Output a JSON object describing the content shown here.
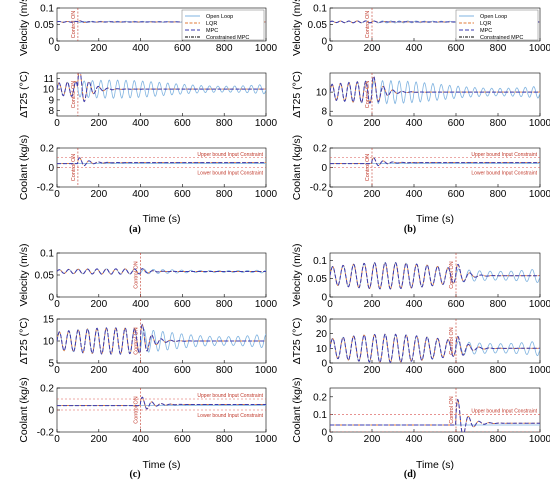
{
  "chart_data": [
    {
      "panel": "(a)",
      "type": "line",
      "xlabel": "Time (s)",
      "xlim": [
        0,
        1000
      ],
      "xticks": [
        0,
        200,
        400,
        600,
        800,
        1000
      ],
      "control_on_time": 100,
      "legend": {
        "placement": "top-right",
        "entries": [
          "Open Loop",
          "LQR",
          "MPC",
          "Constrained MPC"
        ]
      },
      "subplots": [
        {
          "ylabel": "Velocity (m/s)",
          "ylim": [
            0,
            0.1
          ],
          "yticks": [
            0,
            0.05,
            0.1
          ],
          "pre_control": {
            "mean": 0.058,
            "amp": 0.0015,
            "period": 40
          },
          "post_control": {
            "final": 0.058,
            "amp": 0.004,
            "tau": 40,
            "period": 50
          }
        },
        {
          "ylabel": "ΔT25 (°C)",
          "ylim": [
            7.5,
            11.5
          ],
          "yticks": [
            8,
            9,
            10,
            11
          ],
          "pre_control": {
            "mean": 10,
            "amp": 0.7,
            "period": 40
          },
          "post_control": {
            "final": 10,
            "amp": 2.3,
            "tau": 45,
            "period": 45
          }
        },
        {
          "ylabel": "Coolant (kg/s)",
          "ylim": [
            -0.2,
            0.2
          ],
          "yticks": [
            -0.2,
            0,
            0.2
          ],
          "upper_bound": 0.1,
          "lower_bound": 0,
          "pre_control": {
            "mean": 0.04,
            "amp": 0,
            "period": 40
          },
          "post_control": {
            "final": 0.05,
            "amp": 0.06,
            "tau": 45,
            "period": 45
          }
        }
      ]
    },
    {
      "panel": "(b)",
      "type": "line",
      "xlabel": "Time (s)",
      "xlim": [
        0,
        1000
      ],
      "xticks": [
        0,
        200,
        400,
        600,
        800,
        1000
      ],
      "control_on_time": 200,
      "legend": {
        "placement": "top-right",
        "entries": [
          "Open Loop",
          "LQR",
          "MPC",
          "Constrained MPC"
        ]
      },
      "subplots": [
        {
          "ylabel": "Velocity (m/s)",
          "ylim": [
            0,
            0.1
          ],
          "yticks": [
            0,
            0.05,
            0.1
          ],
          "pre_control": {
            "mean": 0.058,
            "amp": 0.0025,
            "period": 40
          },
          "post_control": {
            "final": 0.058,
            "amp": 0.003,
            "tau": 40,
            "period": 50
          }
        },
        {
          "ylabel": "ΔT25 (°C)",
          "ylim": [
            7.5,
            12
          ],
          "yticks": [
            8,
            10
          ],
          "pre_control": {
            "mean": 10,
            "amp": 1.0,
            "period": 40
          },
          "post_control": {
            "final": 10,
            "amp": 2.0,
            "tau": 45,
            "period": 45
          }
        },
        {
          "ylabel": "Coolant (kg/s)",
          "ylim": [
            -0.2,
            0.2
          ],
          "yticks": [
            -0.2,
            0,
            0.2
          ],
          "upper_bound": 0.1,
          "lower_bound": 0,
          "pre_control": {
            "mean": 0.04,
            "amp": 0,
            "period": 40
          },
          "post_control": {
            "final": 0.05,
            "amp": 0.06,
            "tau": 45,
            "period": 45
          }
        }
      ]
    },
    {
      "panel": "(c)",
      "type": "line",
      "xlabel": "Time (s)",
      "xlim": [
        0,
        1000
      ],
      "xticks": [
        0,
        200,
        400,
        600,
        800,
        1000
      ],
      "control_on_time": 400,
      "subplots": [
        {
          "ylabel": "Velocity (m/s)",
          "ylim": [
            0,
            0.1
          ],
          "yticks": [
            0,
            0.05,
            0.1
          ],
          "pre_control": {
            "mean": 0.058,
            "amp": 0.005,
            "period": 45
          },
          "post_control": {
            "final": 0.058,
            "amp": 0.008,
            "tau": 40,
            "period": 50
          }
        },
        {
          "ylabel": "ΔT25 (°C)",
          "ylim": [
            5,
            15
          ],
          "yticks": [
            5,
            10,
            15
          ],
          "pre_control": {
            "mean": 10,
            "amp": 2.5,
            "period": 45
          },
          "post_control": {
            "final": 10,
            "amp": 4.5,
            "tau": 45,
            "period": 45
          }
        },
        {
          "ylabel": "Coolant (kg/s)",
          "ylim": [
            -0.2,
            0.2
          ],
          "yticks": [
            -0.2,
            0,
            0.2
          ],
          "upper_bound": 0.1,
          "lower_bound": 0,
          "pre_control": {
            "mean": 0.04,
            "amp": 0,
            "period": 45
          },
          "post_control": {
            "final": 0.05,
            "amp": 0.08,
            "tau": 45,
            "period": 45
          }
        }
      ]
    },
    {
      "panel": "(d)",
      "type": "line",
      "xlabel": "Time (s)",
      "xlim": [
        0,
        1000
      ],
      "xticks": [
        0,
        200,
        400,
        600,
        800,
        1000
      ],
      "control_on_time": 600,
      "subplots": [
        {
          "ylabel": "Velocity (m/s)",
          "ylim": [
            0,
            0.12
          ],
          "yticks": [
            0,
            0.05,
            0.1
          ],
          "pre_control": {
            "mean": 0.058,
            "amp": 0.03,
            "period": 50
          },
          "post_control": {
            "final": 0.058,
            "amp": 0.04,
            "tau": 40,
            "period": 55
          }
        },
        {
          "ylabel": "ΔT25 (°C)",
          "ylim": [
            0,
            30
          ],
          "yticks": [
            0,
            10,
            20,
            30
          ],
          "pre_control": {
            "mean": 10,
            "amp": 8,
            "period": 50
          },
          "post_control": {
            "final": 10,
            "amp": 10,
            "tau": 45,
            "period": 50
          }
        },
        {
          "ylabel": "Coolant (kg/s)",
          "ylim": [
            0,
            0.25
          ],
          "yticks": [
            0,
            0.1,
            0.2
          ],
          "upper_bound": 0.1,
          "lower_bound": 0,
          "pre_control": {
            "mean": 0.04,
            "amp": 0,
            "period": 50
          },
          "post_control": {
            "final": 0.05,
            "amp": 0.17,
            "tau": 40,
            "period": 50
          }
        }
      ]
    }
  ],
  "labels": {
    "control_on": "Control ON",
    "upper_bound": "Upper bound Input Constraint",
    "lower_bound": "Lower bound Input Constraint"
  },
  "colors": {
    "open_loop": "#7fb3e0",
    "lqr": "#e07b39",
    "mpc": "#3b3bb0",
    "constrained_mpc": "#000000",
    "constraint": "#d9534f",
    "control_on_line": "#c0392b"
  }
}
